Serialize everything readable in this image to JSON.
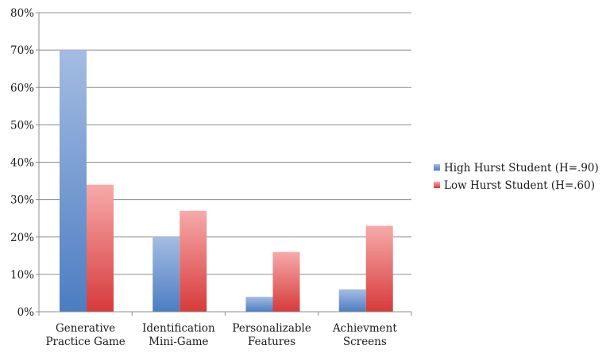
{
  "chart_data": {
    "type": "bar",
    "categories": [
      [
        "Generative",
        "Practice Game"
      ],
      [
        "Identification",
        "Mini-Game"
      ],
      [
        "Personalizable",
        "Features"
      ],
      [
        "Achievment",
        "Screens"
      ]
    ],
    "series": [
      {
        "name": "High Hurst Student (H=.90)",
        "values": [
          70,
          20,
          4,
          6
        ],
        "color_top": "#a4bce3",
        "color_bottom": "#4c7dc2"
      },
      {
        "name": "Low Hurst Student (H=.60)",
        "values": [
          34,
          27,
          16,
          23
        ],
        "color_top": "#f7aaaa",
        "color_bottom": "#d73a3a"
      }
    ],
    "ylim": [
      0,
      80
    ],
    "yticks": [
      "0%",
      "10%",
      "20%",
      "30%",
      "40%",
      "50%",
      "60%",
      "70%",
      "80%"
    ],
    "ytick_values": [
      0,
      10,
      20,
      30,
      40,
      50,
      60,
      70,
      80
    ],
    "grid": true,
    "legend_position": "right",
    "gridline_color": "#8c8c8c",
    "axis_color": "#8c8c8c"
  }
}
